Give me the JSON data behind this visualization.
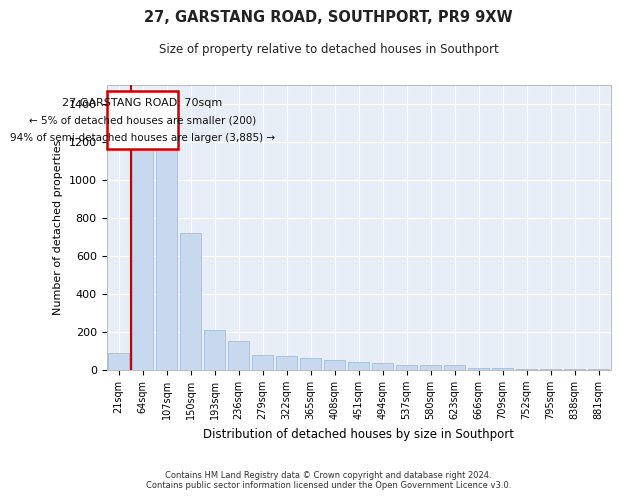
{
  "title": "27, GARSTANG ROAD, SOUTHPORT, PR9 9XW",
  "subtitle": "Size of property relative to detached houses in Southport",
  "xlabel": "Distribution of detached houses by size in Southport",
  "ylabel": "Number of detached properties",
  "footer_line1": "Contains HM Land Registry data © Crown copyright and database right 2024.",
  "footer_line2": "Contains public sector information licensed under the Open Government Licence v3.0.",
  "bar_color": "#c8d8ef",
  "bar_edge_color": "#a0bedd",
  "vline_color": "#cc0000",
  "annotation_box_color": "#cc0000",
  "categories": [
    "21sqm",
    "64sqm",
    "107sqm",
    "150sqm",
    "193sqm",
    "236sqm",
    "279sqm",
    "322sqm",
    "365sqm",
    "408sqm",
    "451sqm",
    "494sqm",
    "537sqm",
    "580sqm",
    "623sqm",
    "666sqm",
    "709sqm",
    "752sqm",
    "795sqm",
    "838sqm",
    "881sqm"
  ],
  "values": [
    90,
    1370,
    1350,
    720,
    210,
    155,
    80,
    73,
    65,
    52,
    40,
    35,
    28,
    27,
    25,
    10,
    8,
    6,
    5,
    4,
    3
  ],
  "vline_index": 1,
  "annotation_title": "27 GARSTANG ROAD: 70sqm",
  "annotation_line1": "← 5% of detached houses are smaller (200)",
  "annotation_line2": "94% of semi-detached houses are larger (3,885) →",
  "ylim": [
    0,
    1500
  ],
  "yticks": [
    0,
    200,
    400,
    600,
    800,
    1000,
    1200,
    1400
  ],
  "plot_bg_color": "#e8eef8",
  "grid_color": "#ffffff"
}
